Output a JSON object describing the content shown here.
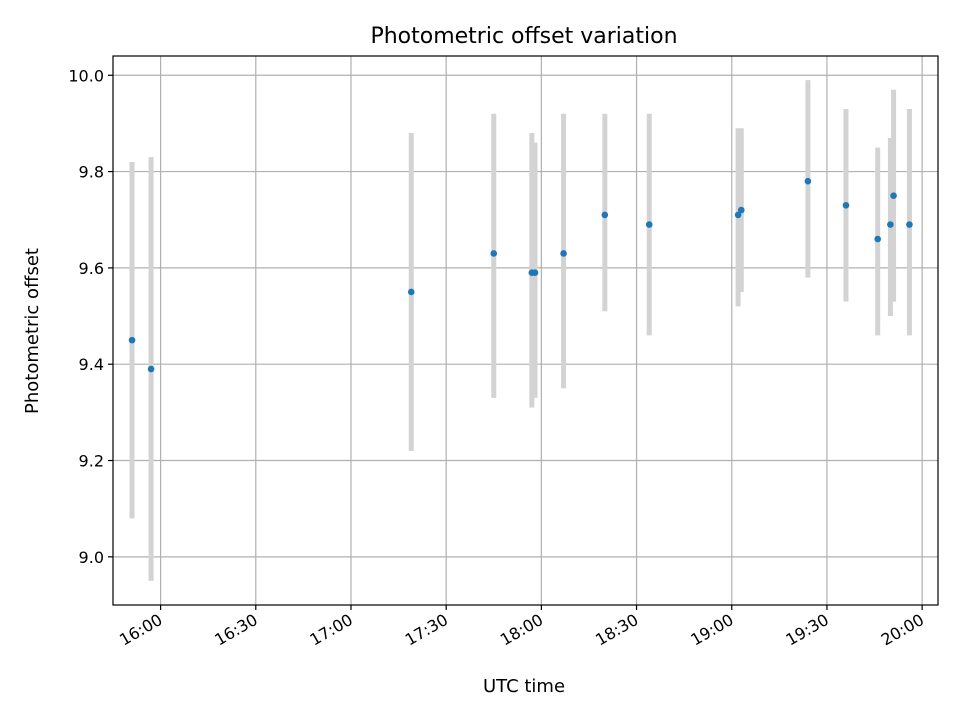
{
  "chart_data": {
    "type": "scatter",
    "title": "Photometric offset variation",
    "xlabel": "UTC time",
    "ylabel": "Photometric offset",
    "xlim": [
      "15:45",
      "20:05"
    ],
    "ylim": [
      8.9,
      10.04
    ],
    "x_ticks": [
      "16:00",
      "16:30",
      "17:00",
      "17:30",
      "18:00",
      "18:30",
      "19:00",
      "19:30",
      "20:00"
    ],
    "y_ticks": [
      "9.0",
      "9.2",
      "9.4",
      "9.6",
      "9.8",
      "10.0"
    ],
    "grid": true,
    "point_color": "#1f77b4",
    "errorbar_color": "#d3d3d3",
    "points": [
      {
        "x": "15:51",
        "y": 9.45,
        "low": 9.08,
        "high": 9.82
      },
      {
        "x": "15:57",
        "y": 9.39,
        "low": 8.95,
        "high": 9.83
      },
      {
        "x": "17:19",
        "y": 9.55,
        "low": 9.22,
        "high": 9.88
      },
      {
        "x": "17:45",
        "y": 9.63,
        "low": 9.33,
        "high": 9.92
      },
      {
        "x": "17:57",
        "y": 9.59,
        "low": 9.31,
        "high": 9.88
      },
      {
        "x": "17:58",
        "y": 9.59,
        "low": 9.33,
        "high": 9.86
      },
      {
        "x": "18:07",
        "y": 9.63,
        "low": 9.35,
        "high": 9.92
      },
      {
        "x": "18:20",
        "y": 9.71,
        "low": 9.51,
        "high": 9.92
      },
      {
        "x": "18:34",
        "y": 9.69,
        "low": 9.46,
        "high": 9.92
      },
      {
        "x": "19:02",
        "y": 9.71,
        "low": 9.52,
        "high": 9.89
      },
      {
        "x": "19:03",
        "y": 9.72,
        "low": 9.55,
        "high": 9.89
      },
      {
        "x": "19:24",
        "y": 9.78,
        "low": 9.58,
        "high": 9.99
      },
      {
        "x": "19:36",
        "y": 9.73,
        "low": 9.53,
        "high": 9.93
      },
      {
        "x": "19:46",
        "y": 9.66,
        "low": 9.46,
        "high": 9.85
      },
      {
        "x": "19:50",
        "y": 9.69,
        "low": 9.5,
        "high": 9.87
      },
      {
        "x": "19:51",
        "y": 9.75,
        "low": 9.53,
        "high": 9.97
      },
      {
        "x": "19:56",
        "y": 9.69,
        "low": 9.46,
        "high": 9.93
      }
    ]
  }
}
